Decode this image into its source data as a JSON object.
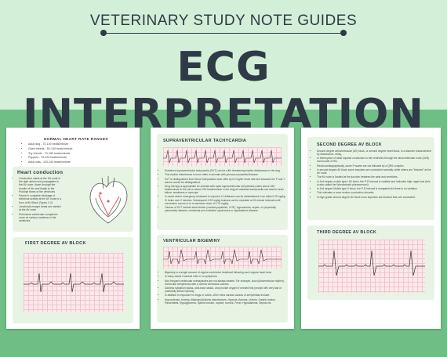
{
  "header": {
    "subtitle": "VETERINARY STUDY NOTE GUIDES",
    "title": "ECG INTERPRETATION"
  },
  "page1": {
    "normal_rates_title": "Normal heart rate ranges",
    "normal_rates": [
      "Adult dog - 70-140 beats/minute",
      "Giant breeds - 60-140 beats/minute",
      "Toy breeds - 70-180 beats/minute",
      "Puppies - 70-220 beats/minute",
      "Adult cats - 120-240 beats/minute"
    ],
    "heart_conduction_title": "Heart conduction",
    "heart_conduction": [
      "Conduction starts at the SA node in the right atrium and propagates to the AV node, down through the bundle of His and finally to the Purkinje fibres of the ventricles",
      "Pause in complete blockage of electrical activity at the AV node is a form of AV Block (Types 1-3)",
      "Junctional escape beats are started at the AV node",
      "Premature ventricular complexes occur at various locations in the ventricles"
    ],
    "first_degree_title": "First degree AV block"
  },
  "page2": {
    "svt_title": "Supraventricular Tachycardia",
    "svt_text": [
      "Sustained supraventricular tachycardia (SVT) can be a life threatening rhythm disturbance in the dog.",
      "This rhythm disturbance is more often in animals with primary myocardial disease.",
      "SVT is distinguished from Sinus Tachycardia most often by it's higher heart rate and because the P and T waves cannot be distinguished.",
      "Drug therapy is appropriate for animals with rapid supraventricular arrhythmias (rates above 260 beats/minute in the cat or above 220 beats/minute in the dog) at sustained tachycardia can lead to heart failure, weakness or syncope.",
      "In cases where emergency treatment is required, IV diltiazem can be administered in an initial 0.25 mg/kg IV bolus over 2 minutes. Subsequent 0.25 mg/kg boluses can be repeated at 15 minute intervals until conversion occurs or to a maximum dose of 0.75 mg/kg.",
      "Causes of SVT include atrial stretch (cardiomyopathies, CHF), hypoxaemia, sepsis, or (especially pancreatic) disease, ventricular pre-excitation syndromes or hypokalemic disease."
    ],
    "bigeminy_title": "Ventricular Bigeminy",
    "bigeminy_text": [
      "Bigeminy is a single amount of regular ventricular heartbeat following each regular heart beat.",
      "In many cases it causes mild or no symptoms.",
      "Non-frequent ventricular extrasystoles are not always treated. For example, slow (idioventricular rhythm), ventricular arrhythmias with a normal ventricular causes.",
      "Address hydration status, acid-base status, and provide oxygen if needed first (except with very fast or potentially lethal rhythms).",
      "In addition to exposure to drugs or toxins, other extra cardiac causes of arrhythmias include:",
      "Hypovolemia, Anxiety, Alkalosis/Acidosis disturbances, Hypoxia, Anemia, Uremia, Gastric torsion, Pancreatitis, Hypoglycemia, Splenic torsion, rupture, tumors, Fever, Hypokalemia, Sepsis etc."
    ]
  },
  "page3": {
    "second_degree_title": "Second degree AV block",
    "second_degree_text": [
      "Second degree atrioventricular (AV) block, or second degree heart block, is a disorder characterized by disturbance, delay,",
      "or interruption of atrial impulse conduction to the ventricles through the atrioventricular node (AVN) and bundle of His.",
      "Electrocardiographically, some P waves are not followed by a QRS complex.",
      "In second degree AV block some impulses are conducted normally, while others are \"blocked\" at the AV node.",
      "The AV node is located at the junction between the atria and ventricles.",
      "In 2nd degree mobitz type I AV block, the P-R interval is variable and indicates high vagal tone (this is also called the Wenckebach phenomenon).",
      "In 2nd degree Mobitz type II block, the P-R interval is elongated but there is no variation.",
      "This indicates a more serious conduction disorder.",
      "In high grade second degree AV block more impulses are blocked than are conducted."
    ],
    "third_degree_title": "Third degree AV block"
  },
  "colors": {
    "background_green": "#6fbe86",
    "header_green": "#d4efd7",
    "text_dark": "#2e3a46",
    "box_green": "#e7f4e4",
    "ecg_grid": "#f3c4cc"
  }
}
